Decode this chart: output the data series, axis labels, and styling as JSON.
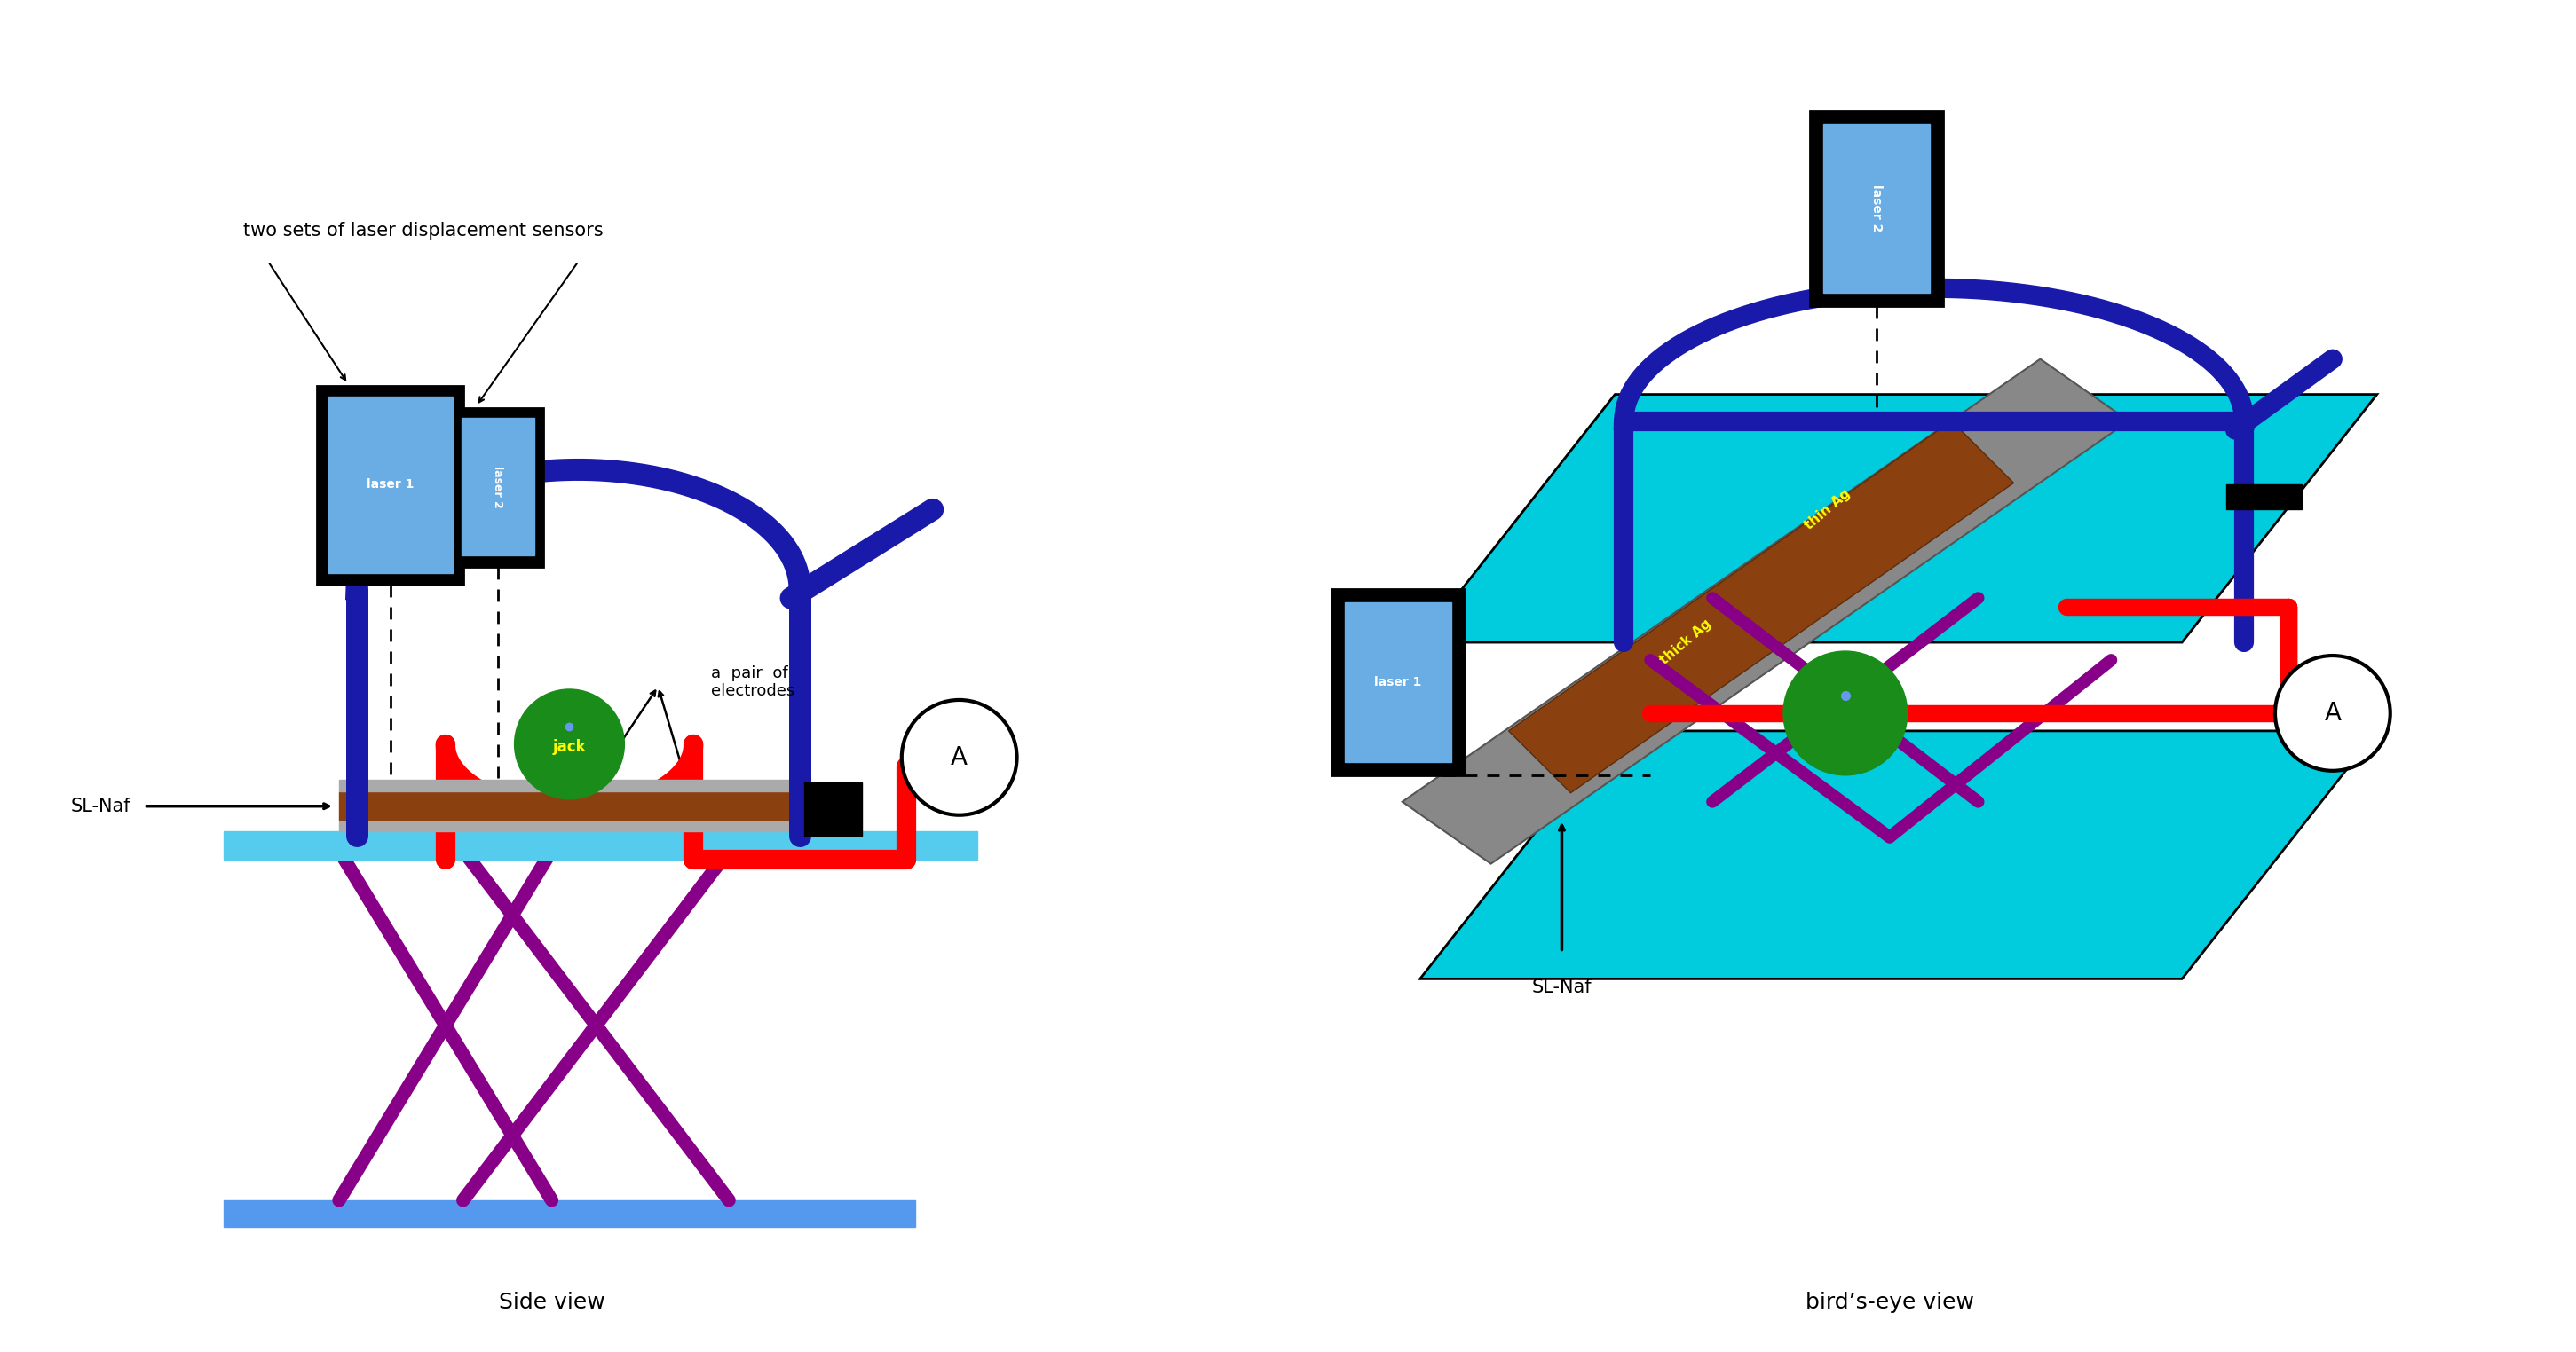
{
  "fig_width": 29.02,
  "fig_height": 15.24,
  "bg_color": "#ffffff",
  "laser_blue": "#6aade4",
  "dark_navy": "#1a1aaa",
  "bright_red": "#ff0000",
  "green_jack": "#1a8c1a",
  "purple": "#880088",
  "cyan_plate": "#00ccdd",
  "gray_ag": "#999999",
  "brown_ag": "#8B4010",
  "black": "#000000",
  "white": "#ffffff",
  "yellow": "#ffff00",
  "blue_bar": "#5599ee",
  "caption_left": "Side view",
  "caption_right": "bird’s-eye view",
  "annotation_top": "two sets of laser displacement sensors",
  "label_sl_naf": "SL-Naf",
  "label_electrodes": "a  pair  of\nelectrodes",
  "label_jack": "jack",
  "label_laser1": "laser 1",
  "label_laser2": "laser 2",
  "label_thick_ag": "thick Ag",
  "label_thin_ag": "thin Ag"
}
